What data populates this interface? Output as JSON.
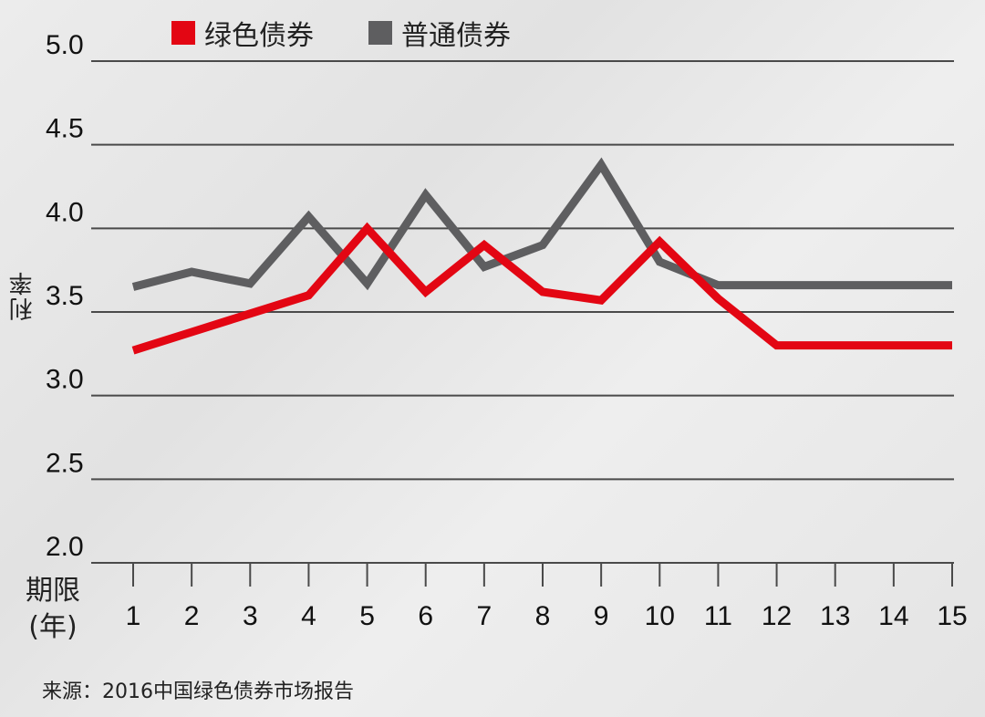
{
  "legend": {
    "green_label": "绿色债券",
    "normal_label": "普通债券"
  },
  "ylabel": "利率",
  "xlabel_line1": "期限",
  "xlabel_line2": "(年)",
  "source": "来源：2016中国绿色债券市场报告",
  "colors": {
    "green_series": "#e30613",
    "normal_series": "#5e5e60",
    "grid": "#4a4a4a"
  },
  "chart_data": {
    "type": "line",
    "x": [
      1,
      2,
      3,
      4,
      5,
      6,
      7,
      8,
      9,
      10,
      11,
      12,
      13,
      14,
      15
    ],
    "y_ticks": [
      "5.0",
      "4.5",
      "4.0",
      "3.5",
      "3.0",
      "2.5",
      "2.0"
    ],
    "ylim": [
      2.0,
      5.0
    ],
    "series": [
      {
        "name": "绿色债券",
        "values": [
          3.27,
          3.38,
          3.49,
          3.6,
          4.0,
          3.62,
          3.9,
          3.62,
          3.57,
          3.92,
          3.58,
          3.3,
          3.3,
          3.3,
          3.3
        ]
      },
      {
        "name": "普通债券",
        "values": [
          3.65,
          3.74,
          3.67,
          4.07,
          3.67,
          4.2,
          3.77,
          3.9,
          4.38,
          3.8,
          3.66,
          3.66,
          3.66,
          3.66,
          3.66
        ]
      }
    ],
    "grid": true,
    "legend_position": "top-left"
  }
}
